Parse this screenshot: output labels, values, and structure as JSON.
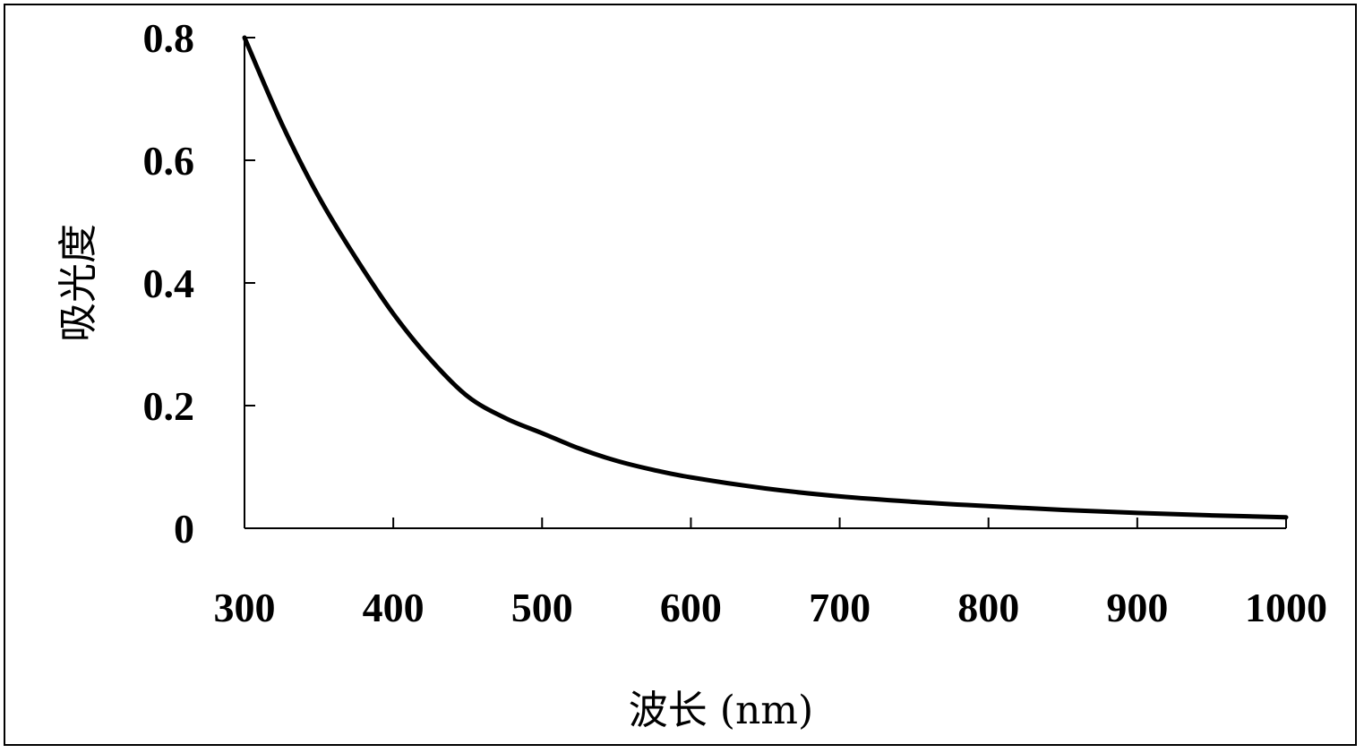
{
  "chart_data": {
    "type": "line",
    "xlabel": "波长 (nm)",
    "ylabel": "吸光度",
    "xlim": [
      300,
      1000
    ],
    "ylim": [
      0,
      0.8
    ],
    "x_ticks": [
      "300",
      "400",
      "500",
      "600",
      "700",
      "800",
      "900",
      "1000"
    ],
    "y_ticks": [
      "0",
      "0.2",
      "0.4",
      "0.6",
      "0.8"
    ],
    "grid": false,
    "legend": "none",
    "line_color": "#000000",
    "series": [
      {
        "x": [
          300,
          325,
          350,
          375,
          400,
          425,
          450,
          475,
          500,
          525,
          550,
          575,
          600,
          650,
          700,
          750,
          800,
          850,
          900,
          950,
          1000
        ],
        "y": [
          0.8,
          0.66,
          0.54,
          0.44,
          0.35,
          0.275,
          0.215,
          0.18,
          0.155,
          0.13,
          0.11,
          0.095,
          0.083,
          0.065,
          0.052,
          0.043,
          0.036,
          0.03,
          0.025,
          0.021,
          0.018
        ]
      }
    ]
  }
}
